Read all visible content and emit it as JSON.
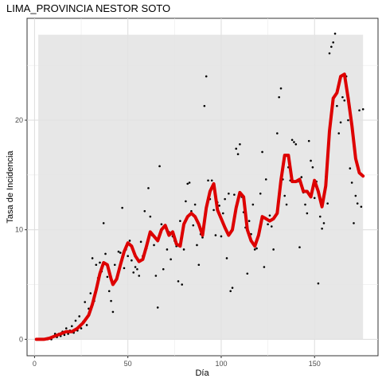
{
  "chart_data": {
    "type": "scatter",
    "title": "LIMA_PROVINCIA NESTOR SOTO",
    "xlabel": "Día",
    "ylabel": "Tasa de Incidencia",
    "xlim": [
      -4,
      184
    ],
    "ylim": [
      -1.5,
      29.3
    ],
    "x_ticks": [
      0,
      50,
      100,
      150
    ],
    "y_ticks": [
      0,
      10,
      20
    ],
    "grid": true,
    "band": {
      "x": [
        2,
        176
      ],
      "y": [
        0,
        27.8
      ],
      "color": "#e3e3e3"
    },
    "colors": {
      "points": "#000000",
      "smooth": "#dd0000"
    },
    "points": [
      [
        1,
        0
      ],
      [
        2,
        0
      ],
      [
        3,
        0
      ],
      [
        4,
        0
      ],
      [
        5,
        0
      ],
      [
        6,
        0
      ],
      [
        7,
        0
      ],
      [
        8,
        0.1
      ],
      [
        9,
        0
      ],
      [
        10,
        0.2
      ],
      [
        11,
        0.5
      ],
      [
        12,
        0.2
      ],
      [
        13,
        0.5
      ],
      [
        14,
        0.3
      ],
      [
        15,
        0.7
      ],
      [
        16,
        0.4
      ],
      [
        17,
        1.0
      ],
      [
        18,
        0.5
      ],
      [
        19,
        0.8
      ],
      [
        20,
        1.2
      ],
      [
        21,
        0.6
      ],
      [
        22,
        1.7
      ],
      [
        23,
        0.8
      ],
      [
        24,
        2.1
      ],
      [
        25,
        1.0
      ],
      [
        26,
        1.6
      ],
      [
        27,
        3.4
      ],
      [
        28,
        1.3
      ],
      [
        29,
        2.8
      ],
      [
        30,
        4.2
      ],
      [
        31,
        7.4
      ],
      [
        32,
        3.5
      ],
      [
        33,
        6.8
      ],
      [
        34,
        5.6
      ],
      [
        35,
        7.0
      ],
      [
        36,
        6.2
      ],
      [
        37,
        10.6
      ],
      [
        38,
        7.8
      ],
      [
        39,
        5.7
      ],
      [
        40,
        4.4
      ],
      [
        41,
        3.5
      ],
      [
        42,
        2.5
      ],
      [
        43,
        6.8
      ],
      [
        44,
        5.5
      ],
      [
        45,
        8.0
      ],
      [
        46,
        7.9
      ],
      [
        47,
        12.0
      ],
      [
        48,
        6.5
      ],
      [
        49,
        8.2
      ],
      [
        50,
        7.6
      ],
      [
        51,
        9.0
      ],
      [
        52,
        7.2
      ],
      [
        53,
        6.1
      ],
      [
        54,
        6.6
      ],
      [
        55,
        6.4
      ],
      [
        56,
        5.8
      ],
      [
        57,
        8.9
      ],
      [
        58,
        7.6
      ],
      [
        59,
        11.7
      ],
      [
        60,
        8.3
      ],
      [
        61,
        13.8
      ],
      [
        62,
        11.2
      ],
      [
        63,
        9.5
      ],
      [
        64,
        8.6
      ],
      [
        65,
        5.8
      ],
      [
        66,
        2.9
      ],
      [
        67,
        15.8
      ],
      [
        68,
        10.5
      ],
      [
        69,
        6.4
      ],
      [
        70,
        10.2
      ],
      [
        71,
        8.2
      ],
      [
        72,
        9.8
      ],
      [
        73,
        7.3
      ],
      [
        74,
        9.4
      ],
      [
        75,
        9.0
      ],
      [
        76,
        8.5
      ],
      [
        77,
        5.3
      ],
      [
        78,
        10.8
      ],
      [
        79,
        5.0
      ],
      [
        80,
        8.2
      ],
      [
        81,
        12.6
      ],
      [
        82,
        14.2
      ],
      [
        83,
        14.3
      ],
      [
        84,
        11.7
      ],
      [
        85,
        10.4
      ],
      [
        86,
        12.3
      ],
      [
        87,
        8.6
      ],
      [
        88,
        6.8
      ],
      [
        89,
        9.6
      ],
      [
        90,
        9.3
      ],
      [
        91,
        21.3
      ],
      [
        92,
        24.0
      ],
      [
        93,
        14.5
      ],
      [
        94,
        12.8
      ],
      [
        95,
        14.5
      ],
      [
        96,
        11.8
      ],
      [
        97,
        9.5
      ],
      [
        98,
        12.5
      ],
      [
        99,
        12.2
      ],
      [
        100,
        9.4
      ],
      [
        101,
        11.5
      ],
      [
        102,
        12.8
      ],
      [
        103,
        7.4
      ],
      [
        104,
        13.3
      ],
      [
        105,
        4.4
      ],
      [
        106,
        4.7
      ],
      [
        107,
        13.2
      ],
      [
        108,
        17.4
      ],
      [
        109,
        16.9
      ],
      [
        110,
        17.8
      ],
      [
        111,
        13.0
      ],
      [
        112,
        11.6
      ],
      [
        113,
        10.2
      ],
      [
        114,
        6.0
      ],
      [
        115,
        10.8
      ],
      [
        116,
        9.6
      ],
      [
        117,
        12.3
      ],
      [
        118,
        8.2
      ],
      [
        119,
        8.3
      ],
      [
        120,
        9.4
      ],
      [
        121,
        13.3
      ],
      [
        122,
        17.1
      ],
      [
        123,
        6.6
      ],
      [
        124,
        14.6
      ],
      [
        125,
        10.5
      ],
      [
        126,
        11.3
      ],
      [
        127,
        10.3
      ],
      [
        128,
        8.2
      ],
      [
        129,
        11.2
      ],
      [
        130,
        18.8
      ],
      [
        131,
        22.1
      ],
      [
        132,
        22.9
      ],
      [
        133,
        14.6
      ],
      [
        134,
        13.1
      ],
      [
        135,
        12.3
      ],
      [
        136,
        15.7
      ],
      [
        137,
        14.5
      ],
      [
        138,
        18.2
      ],
      [
        139,
        18.0
      ],
      [
        140,
        17.8
      ],
      [
        141,
        14.4
      ],
      [
        142,
        8.4
      ],
      [
        143,
        14.8
      ],
      [
        144,
        13.4
      ],
      [
        145,
        12.3
      ],
      [
        146,
        11.5
      ],
      [
        147,
        18.1
      ],
      [
        148,
        16.3
      ],
      [
        149,
        15.7
      ],
      [
        150,
        12.9
      ],
      [
        151,
        14.4
      ],
      [
        152,
        5.1
      ],
      [
        153,
        11.2
      ],
      [
        154,
        10.1
      ],
      [
        155,
        10.6
      ],
      [
        156,
        14.8
      ],
      [
        157,
        12.4
      ],
      [
        158,
        26.1
      ],
      [
        159,
        26.7
      ],
      [
        160,
        27.1
      ],
      [
        161,
        27.9
      ],
      [
        162,
        21.3
      ],
      [
        163,
        18.8
      ],
      [
        164,
        19.8
      ],
      [
        165,
        22.1
      ],
      [
        166,
        21.8
      ],
      [
        167,
        24.0
      ],
      [
        168,
        20.0
      ],
      [
        169,
        15.6
      ],
      [
        170,
        14.3
      ],
      [
        171,
        10.6
      ],
      [
        172,
        13.1
      ],
      [
        173,
        12.4
      ],
      [
        174,
        20.9
      ],
      [
        175,
        12.1
      ],
      [
        176,
        21.0
      ]
    ],
    "smooth_line": [
      [
        1,
        0
      ],
      [
        5,
        0
      ],
      [
        8,
        0.1
      ],
      [
        11,
        0.3
      ],
      [
        14,
        0.5
      ],
      [
        17,
        0.7
      ],
      [
        20,
        0.7
      ],
      [
        23,
        1.0
      ],
      [
        26,
        1.5
      ],
      [
        29,
        2.2
      ],
      [
        31,
        3.2
      ],
      [
        33,
        4.5
      ],
      [
        35,
        6.0
      ],
      [
        37,
        7.0
      ],
      [
        39,
        6.8
      ],
      [
        41,
        5.5
      ],
      [
        42,
        5.0
      ],
      [
        44,
        5.5
      ],
      [
        46,
        6.8
      ],
      [
        48,
        8.0
      ],
      [
        50,
        8.8
      ],
      [
        52,
        8.5
      ],
      [
        54,
        7.6
      ],
      [
        56,
        7.1
      ],
      [
        58,
        7.3
      ],
      [
        60,
        8.5
      ],
      [
        62,
        9.8
      ],
      [
        64,
        9.4
      ],
      [
        66,
        9.0
      ],
      [
        68,
        10.0
      ],
      [
        70,
        10.4
      ],
      [
        72,
        9.5
      ],
      [
        74,
        9.8
      ],
      [
        76,
        8.7
      ],
      [
        78,
        8.5
      ],
      [
        80,
        10.5
      ],
      [
        82,
        11.2
      ],
      [
        84,
        11.5
      ],
      [
        86,
        11.2
      ],
      [
        88,
        10.5
      ],
      [
        90,
        9.5
      ],
      [
        92,
        12.0
      ],
      [
        94,
        13.5
      ],
      [
        96,
        14.2
      ],
      [
        98,
        11.8
      ],
      [
        100,
        11.0
      ],
      [
        102,
        10.2
      ],
      [
        104,
        9.5
      ],
      [
        106,
        10.0
      ],
      [
        108,
        12.0
      ],
      [
        110,
        13.4
      ],
      [
        112,
        13.0
      ],
      [
        114,
        10.0
      ],
      [
        116,
        9.0
      ],
      [
        118,
        8.5
      ],
      [
        120,
        9.5
      ],
      [
        122,
        11.2
      ],
      [
        124,
        11.0
      ],
      [
        126,
        10.8
      ],
      [
        128,
        11.0
      ],
      [
        130,
        11.5
      ],
      [
        132,
        14.5
      ],
      [
        134,
        16.8
      ],
      [
        136,
        16.8
      ],
      [
        138,
        14.4
      ],
      [
        140,
        14.4
      ],
      [
        142,
        14.6
      ],
      [
        144,
        13.5
      ],
      [
        146,
        13.5
      ],
      [
        148,
        13.0
      ],
      [
        150,
        14.5
      ],
      [
        152,
        13.5
      ],
      [
        154,
        12.1
      ],
      [
        156,
        14.0
      ],
      [
        158,
        19.0
      ],
      [
        160,
        22.0
      ],
      [
        162,
        22.5
      ],
      [
        164,
        24.0
      ],
      [
        166,
        24.2
      ],
      [
        168,
        22.0
      ],
      [
        170,
        19.5
      ],
      [
        172,
        16.5
      ],
      [
        174,
        15.2
      ],
      [
        176,
        14.9
      ]
    ]
  }
}
